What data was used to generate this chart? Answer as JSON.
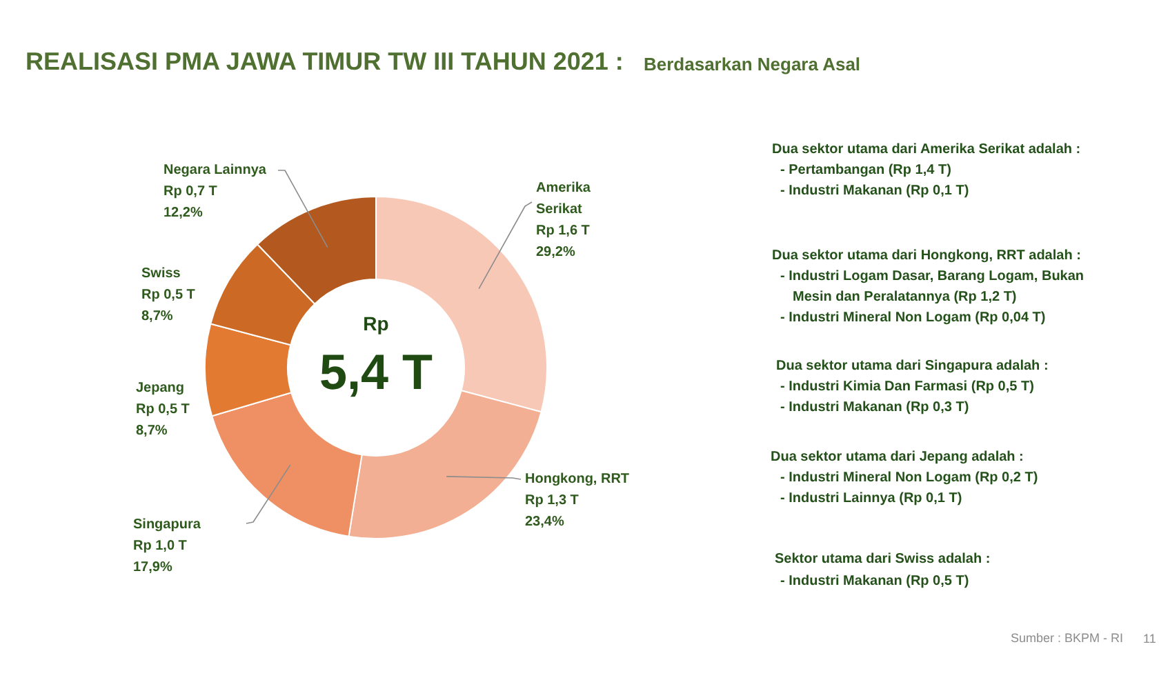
{
  "chart_data": {
    "type": "donut",
    "title": "REALISASI PMA JAWA TIMUR TW III TAHUN 2021 :",
    "subtitle": "Berdasarkan Negara Asal",
    "categories": [
      "Amerika Serikat",
      "Hongkong, RRT",
      "Singapura",
      "Jepang",
      "Swiss",
      "Negara Lainnya"
    ],
    "values": [
      29.2,
      23.4,
      17.9,
      8.7,
      8.7,
      12.2
    ],
    "value_labels": [
      "Rp 1,6 T\n29,2%",
      "Rp 1,3 T\n23,4%",
      "Rp 1,0 T\n17,9%",
      "Rp 0,5 T\n8,7%",
      "Rp 0,5 T\n8,7%",
      "Rp 0,7 T\n12,2%"
    ],
    "colors": [
      "#f7c8b6",
      "#f2af93",
      "#ee9063",
      "#e37a32",
      "#cc6a25",
      "#b3591f"
    ],
    "annotations": [
      "Rp",
      "5,4 T",
      "Dua sektor utama dari Amerika Serikat adalah :",
      "- Pertambangan (Rp 1,4 T)",
      "- Industri Makanan (Rp 0,1 T)",
      "Dua sektor utama dari Hongkong, RRT adalah :",
      "- Industri Logam Dasar, Barang Logam, Bukan",
      "Mesin dan Peralatannya (Rp 1,2 T)",
      "- Industri Mineral Non Logam (Rp 0,04 T)",
      "Dua sektor utama dari Singapura adalah :",
      "- Industri Kimia Dan Farmasi (Rp 0,5 T)",
      "- Industri Makanan (Rp 0,3 T)",
      "Dua sektor utama dari Jepang adalah :",
      "- Industri Mineral Non Logam (Rp 0,2 T)",
      "- Industri Lainnya (Rp 0,1 T)",
      "Sektor utama dari Swiss adalah :",
      "- Industri Makanan (Rp 0,5 T)",
      "Sumber : BKPM - RI",
      "11"
    ]
  }
}
